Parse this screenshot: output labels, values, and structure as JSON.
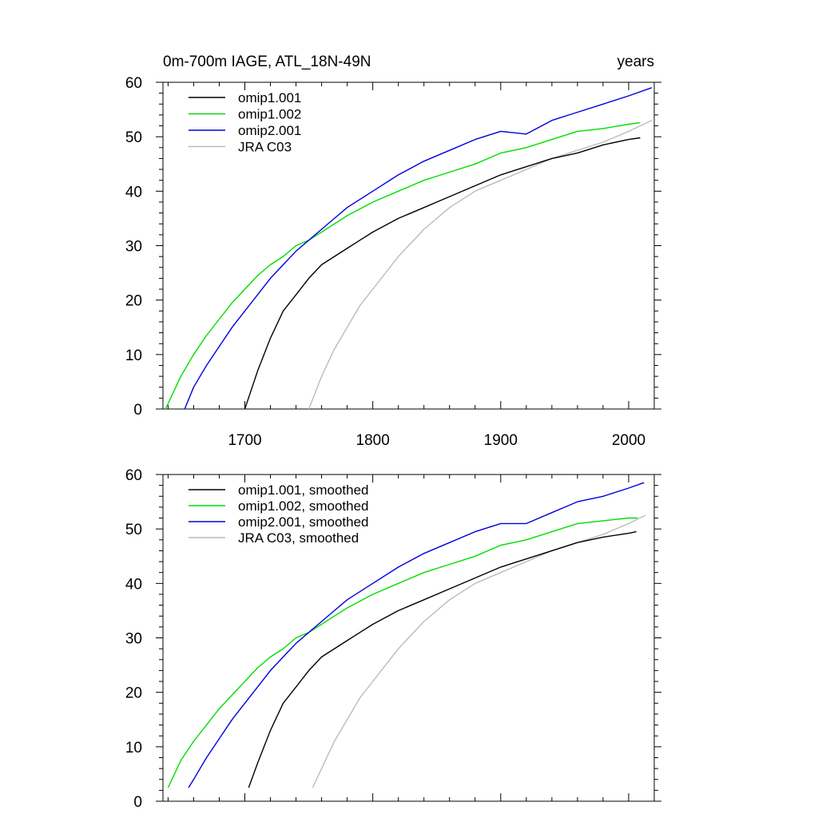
{
  "chart_data": [
    {
      "type": "line",
      "title": "0m-700m IAGE, ATL_18N-49N",
      "units": "years",
      "xlim": [
        1636,
        2020
      ],
      "ylim": [
        0,
        60
      ],
      "xticks": [
        1700,
        1800,
        1900,
        2000
      ],
      "yticks": [
        0,
        10,
        20,
        30,
        40,
        50,
        60
      ],
      "legend_position": "top-left",
      "series": [
        {
          "name": "omip1.001",
          "color": "#000000",
          "x": [
            1700,
            1710,
            1720,
            1730,
            1740,
            1750,
            1760,
            1770,
            1780,
            1790,
            1800,
            1820,
            1840,
            1860,
            1880,
            1900,
            1920,
            1940,
            1960,
            1980,
            2000,
            2009
          ],
          "y": [
            0,
            7,
            13,
            18,
            21,
            24,
            26.5,
            28,
            29.5,
            31,
            32.5,
            35,
            37,
            39,
            41,
            43,
            44.5,
            46,
            47,
            48.5,
            49.5,
            49.8
          ]
        },
        {
          "name": "omip1.002",
          "color": "#00dd00",
          "x": [
            1638,
            1650,
            1660,
            1670,
            1680,
            1690,
            1700,
            1710,
            1720,
            1730,
            1740,
            1750,
            1760,
            1770,
            1780,
            1800,
            1820,
            1840,
            1860,
            1880,
            1900,
            1920,
            1940,
            1960,
            1980,
            2000,
            2009
          ],
          "y": [
            0,
            6,
            10,
            13.5,
            16.5,
            19.5,
            22,
            24.5,
            26.5,
            28,
            30,
            31,
            32.5,
            34,
            35.5,
            38,
            40,
            42,
            43.5,
            45,
            47,
            48,
            49.5,
            51,
            51.5,
            52.3,
            52.6
          ]
        },
        {
          "name": "omip2.001",
          "color": "#0000dd",
          "x": [
            1653,
            1660,
            1670,
            1680,
            1690,
            1700,
            1710,
            1720,
            1730,
            1740,
            1750,
            1760,
            1770,
            1780,
            1800,
            1820,
            1840,
            1860,
            1880,
            1900,
            1920,
            1940,
            1960,
            1980,
            2000,
            2018
          ],
          "y": [
            0,
            4,
            8,
            11.5,
            15,
            18,
            21,
            24,
            26.5,
            29,
            31,
            33,
            35,
            37,
            40,
            43,
            45.5,
            47.5,
            49.5,
            51,
            50.5,
            53,
            54.5,
            56,
            57.5,
            59
          ]
        },
        {
          "name": "JRA C03",
          "color": "#bbbbbb",
          "x": [
            1750,
            1760,
            1770,
            1780,
            1790,
            1800,
            1820,
            1840,
            1860,
            1880,
            1900,
            1920,
            1940,
            1960,
            1980,
            2000,
            2018
          ],
          "y": [
            0,
            6,
            11,
            15,
            19,
            22,
            28,
            33,
            37,
            40,
            42,
            44,
            46,
            47.5,
            49,
            51,
            53
          ]
        }
      ]
    },
    {
      "type": "line",
      "title": "",
      "xlim": [
        1636,
        2020
      ],
      "ylim": [
        0,
        60
      ],
      "xticks": [
        1700,
        1800,
        1900,
        2000
      ],
      "yticks": [
        0,
        10,
        20,
        30,
        40,
        50,
        60
      ],
      "legend_position": "top-left",
      "series": [
        {
          "name": "omip1.001, smoothed",
          "color": "#000000",
          "x": [
            1703,
            1710,
            1720,
            1730,
            1740,
            1750,
            1760,
            1770,
            1780,
            1790,
            1800,
            1820,
            1840,
            1860,
            1880,
            1900,
            1920,
            1940,
            1960,
            1980,
            2000,
            2006
          ],
          "y": [
            2.5,
            7,
            13,
            18,
            21,
            24,
            26.5,
            28,
            29.5,
            31,
            32.5,
            35,
            37,
            39,
            41,
            43,
            44.5,
            46,
            47.5,
            48.5,
            49.2,
            49.5
          ]
        },
        {
          "name": "omip1.002, smoothed",
          "color": "#00dd00",
          "x": [
            1640,
            1650,
            1660,
            1670,
            1680,
            1690,
            1700,
            1710,
            1720,
            1730,
            1740,
            1750,
            1760,
            1770,
            1780,
            1800,
            1820,
            1840,
            1860,
            1880,
            1900,
            1920,
            1940,
            1960,
            1980,
            2000,
            2007
          ],
          "y": [
            2.5,
            7.5,
            11,
            14,
            17,
            19.5,
            22,
            24.5,
            26.5,
            28,
            30,
            31,
            32.5,
            34,
            35.5,
            38,
            40,
            42,
            43.5,
            45,
            47,
            48,
            49.5,
            51,
            51.5,
            52,
            52
          ]
        },
        {
          "name": "omip2.001, smoothed",
          "color": "#0000dd",
          "x": [
            1656,
            1660,
            1670,
            1680,
            1690,
            1700,
            1710,
            1720,
            1730,
            1740,
            1750,
            1760,
            1770,
            1780,
            1800,
            1820,
            1840,
            1860,
            1880,
            1900,
            1920,
            1940,
            1960,
            1980,
            2000,
            2012
          ],
          "y": [
            2.5,
            4,
            8,
            11.5,
            15,
            18,
            21,
            24,
            26.5,
            29,
            31,
            33,
            35,
            37,
            40,
            43,
            45.5,
            47.5,
            49.5,
            51,
            51,
            53,
            55,
            56,
            57.5,
            58.5
          ]
        },
        {
          "name": "JRA C03, smoothed",
          "color": "#bbbbbb",
          "x": [
            1753,
            1760,
            1770,
            1780,
            1790,
            1800,
            1820,
            1840,
            1860,
            1880,
            1900,
            1920,
            1940,
            1960,
            1980,
            2000,
            2013
          ],
          "y": [
            2.5,
            6,
            11,
            15,
            19,
            22,
            28,
            33,
            37,
            40,
            42,
            44,
            46,
            47.5,
            49,
            51,
            52.5
          ]
        }
      ]
    }
  ]
}
